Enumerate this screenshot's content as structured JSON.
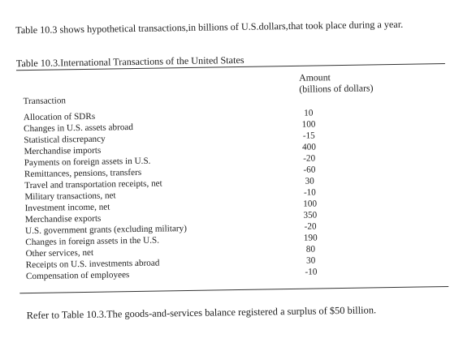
{
  "intro_text": "Table 10.3 shows hypothetical transactions,in billions of U.S.dollars,that took place during a year.",
  "table": {
    "title": "Table 10.3.International Transactions of the United States",
    "amount_header_line1": "Amount",
    "amount_header_line2": "(billions of dollars)",
    "transaction_header": "Transaction",
    "rows": [
      {
        "transaction": "Allocation of SDRs",
        "amount": "10"
      },
      {
        "transaction": "Changes in U.S. assets abroad",
        "amount": "100"
      },
      {
        "transaction": "Statistical discrepancy",
        "amount": "-15"
      },
      {
        "transaction": "Merchandise imports",
        "amount": "400"
      },
      {
        "transaction": "Payments on foreign assets in U.S.",
        "amount": "-20"
      },
      {
        "transaction": "Remittances, pensions, transfers",
        "amount": "-60"
      },
      {
        "transaction": "Travel and transportation receipts, net",
        "amount": "30"
      },
      {
        "transaction": "Military transactions, net",
        "amount": "-10"
      },
      {
        "transaction": "Investment income, net",
        "amount": "100"
      },
      {
        "transaction": "Merchandise exports",
        "amount": "350"
      },
      {
        "transaction": "U.S. government grants (excluding military)",
        "amount": "-20"
      },
      {
        "transaction": "Changes in foreign assets in the U.S.",
        "amount": "190"
      },
      {
        "transaction": "Other services, net",
        "amount": "80"
      },
      {
        "transaction": "Receipts on U.S. investments abroad",
        "amount": "30"
      },
      {
        "transaction": "Compensation of employees",
        "amount": "-10"
      }
    ]
  },
  "question_text": "Refer to Table 10.3.The goods-and-services balance registered a surplus of $50 billion."
}
